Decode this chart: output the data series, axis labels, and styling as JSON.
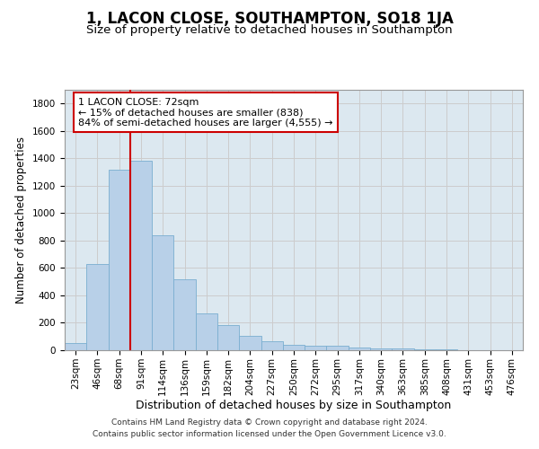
{
  "title": "1, LACON CLOSE, SOUTHAMPTON, SO18 1JA",
  "subtitle": "Size of property relative to detached houses in Southampton",
  "xlabel": "Distribution of detached houses by size in Southampton",
  "ylabel": "Number of detached properties",
  "categories": [
    "23sqm",
    "46sqm",
    "68sqm",
    "91sqm",
    "114sqm",
    "136sqm",
    "159sqm",
    "182sqm",
    "204sqm",
    "227sqm",
    "250sqm",
    "272sqm",
    "295sqm",
    "317sqm",
    "340sqm",
    "363sqm",
    "385sqm",
    "408sqm",
    "431sqm",
    "453sqm",
    "476sqm"
  ],
  "values": [
    50,
    630,
    1320,
    1380,
    840,
    520,
    270,
    185,
    105,
    65,
    40,
    30,
    30,
    20,
    15,
    10,
    5,
    5,
    3,
    2,
    2
  ],
  "bar_color": "#b8d0e8",
  "bar_edge_color": "#7aaed0",
  "vline_color": "#cc0000",
  "annotation_text": "1 LACON CLOSE: 72sqm\n← 15% of detached houses are smaller (838)\n84% of semi-detached houses are larger (4,555) →",
  "annotation_box_color": "#ffffff",
  "annotation_box_edge_color": "#cc0000",
  "ylim": [
    0,
    1900
  ],
  "yticks": [
    0,
    200,
    400,
    600,
    800,
    1000,
    1200,
    1400,
    1600,
    1800
  ],
  "grid_color": "#cccccc",
  "bg_color": "#dce8f0",
  "footer": "Contains HM Land Registry data © Crown copyright and database right 2024.\nContains public sector information licensed under the Open Government Licence v3.0.",
  "title_fontsize": 12,
  "subtitle_fontsize": 9.5,
  "xlabel_fontsize": 9,
  "ylabel_fontsize": 8.5,
  "tick_fontsize": 7.5,
  "annotation_fontsize": 8,
  "footer_fontsize": 6.5
}
